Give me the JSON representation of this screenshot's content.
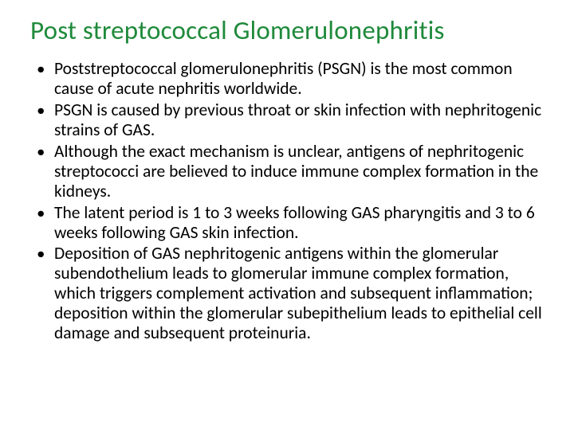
{
  "slide": {
    "title": "Post streptococcal Glomerulonephritis",
    "title_color": "#1f8a3b",
    "body_color": "#000000",
    "bullet_color": "#000000",
    "background_color": "#ffffff",
    "title_fontsize": 33,
    "body_fontsize": 21.5,
    "bullets": [
      "Poststreptococcal glomerulonephritis (PSGN) is the most common cause of acute nephritis worldwide.",
      "PSGN is caused by previous throat or skin infection with nephritogenic strains of GAS.",
      "Although the exact mechanism is unclear, antigens of nephritogenic streptococci are believed to induce immune complex formation in the kidneys.",
      "The latent period is 1 to 3 weeks following GAS pharyngitis and 3 to 6 weeks following GAS skin infection.",
      "Deposition of GAS nephritogenic antigens within the glomerular subendothelium leads to glomerular immune complex formation, which triggers complement activation and subsequent inflammation; deposition within the glomerular subepithelium leads to epithelial cell damage and subsequent proteinuria."
    ]
  }
}
